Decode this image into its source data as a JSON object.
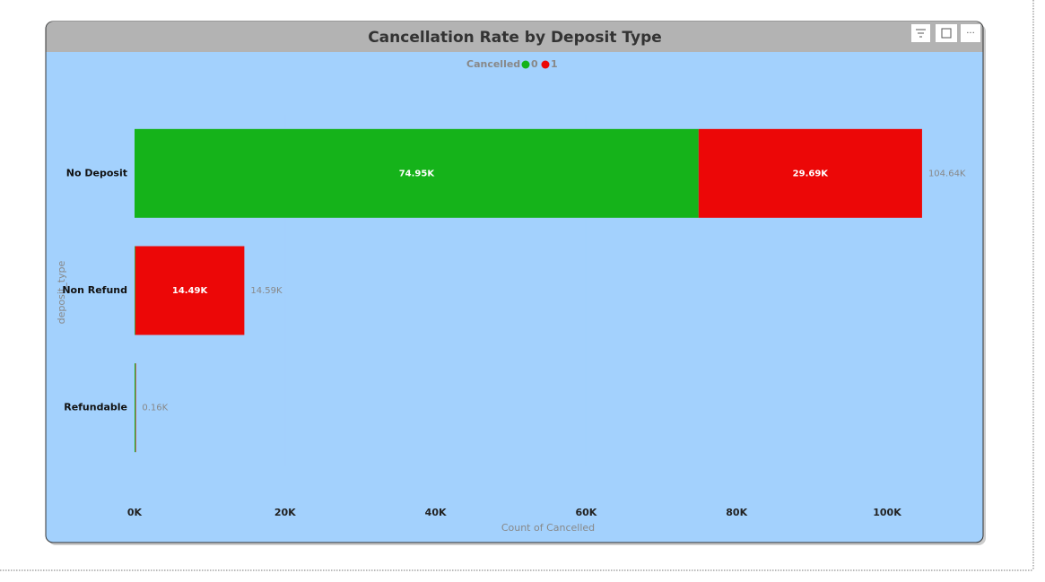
{
  "chart_data": {
    "type": "bar",
    "orientation": "horizontal",
    "stacked": true,
    "title": "Cancellation Rate by Deposit Type",
    "legend_title": "Cancelled",
    "categories": [
      "No Deposit",
      "Non Refund",
      "Refundable"
    ],
    "series": [
      {
        "name": "0",
        "color": "#15b31a",
        "values": [
          74947,
          93,
          142
        ],
        "value_labels": [
          "74.95K",
          null,
          null
        ]
      },
      {
        "name": "1",
        "color": "#ec0707",
        "values": [
          29694,
          14494,
          20
        ],
        "value_labels": [
          "29.69K",
          "14.49K",
          null
        ]
      }
    ],
    "totals": [
      104641,
      14587,
      162
    ],
    "total_labels": [
      "104.64K",
      "14.59K",
      "0.16K"
    ],
    "xlabel": "Count of Cancelled",
    "ylabel": "deposit_type",
    "xlim": [
      0,
      106000
    ],
    "xticks": [
      {
        "value": 0,
        "label": "0K"
      },
      {
        "value": 20000,
        "label": "20K"
      },
      {
        "value": 40000,
        "label": "40K"
      },
      {
        "value": 60000,
        "label": "60K"
      },
      {
        "value": 80000,
        "label": "80K"
      },
      {
        "value": 100000,
        "label": "100K"
      }
    ],
    "legend": "top"
  }
}
